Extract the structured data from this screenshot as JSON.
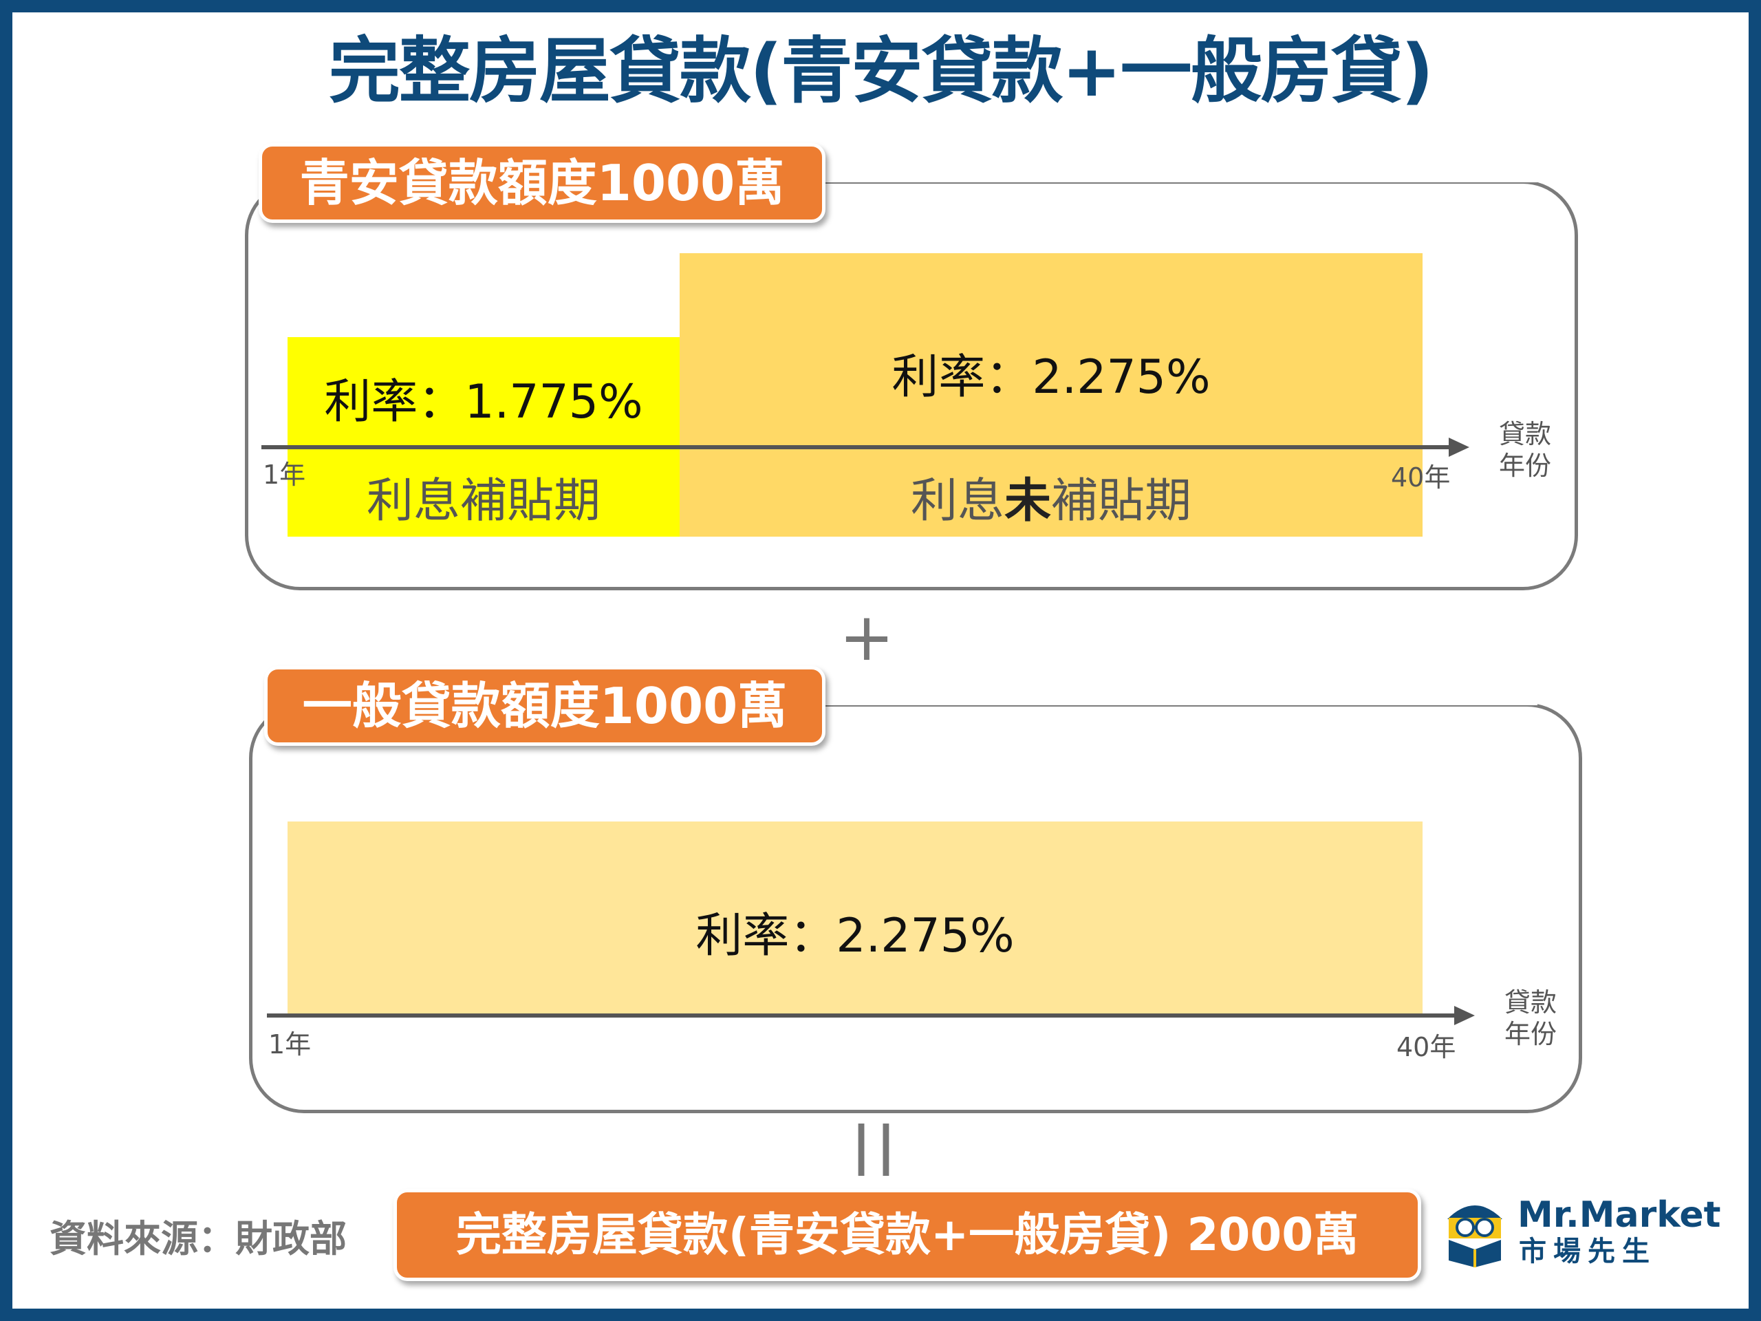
{
  "title": "完整房屋貸款(青安貸款+一般房貸)",
  "section1": {
    "tag": "青安貸款額度1000萬",
    "rate_subsidized": "利率：1.775%",
    "rate_unsubsidized": "利率：2.275%",
    "period_subsidized": "利息補貼期",
    "period_unsubsidized_prefix": "利息",
    "period_unsubsidized_bold": "未",
    "period_unsubsidized_suffix": "補貼期",
    "axis_start": "1年",
    "axis_end": "40年",
    "axis_label_line1": "貸款",
    "axis_label_line2": "年份"
  },
  "plus_sign": "+",
  "section2": {
    "tag": "一般貸款額度1000萬",
    "rate": "利率：2.275%",
    "axis_start": "1年",
    "axis_end": "40年",
    "axis_label_line1": "貸款",
    "axis_label_line2": "年份"
  },
  "equals_sign": "||",
  "total_tag": "完整房屋貸款(青安貸款+一般房貸) 2000萬",
  "source": "資料來源：財政部",
  "logo": {
    "name_en": "Mr.Market",
    "name_zh": "市場先生"
  },
  "colors": {
    "frame": "#0f4a7a",
    "tag": "#ed7d31",
    "subsidized": "#ffff00",
    "unsubsidized": "#ffd966",
    "general": "#ffe699"
  }
}
